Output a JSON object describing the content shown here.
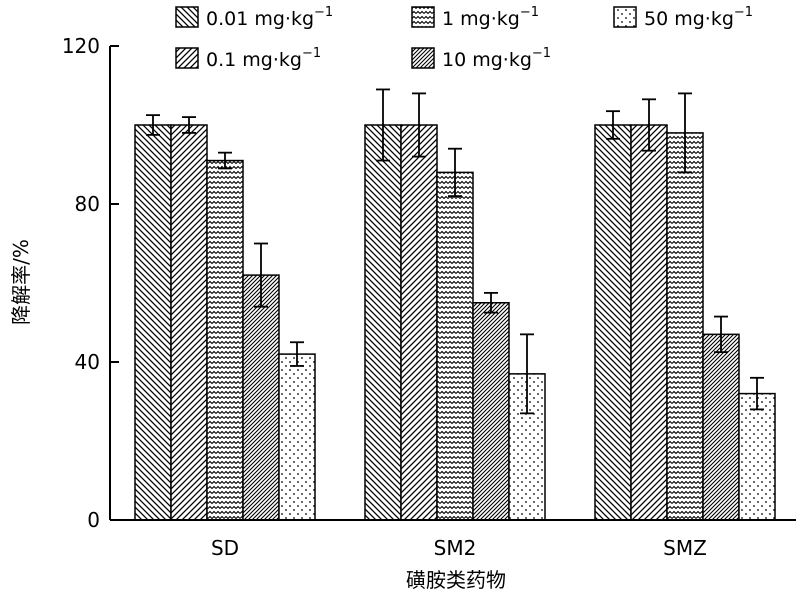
{
  "chart_data": {
    "type": "bar",
    "title": "",
    "xlabel": "磺胺类药物",
    "ylabel": "降解率/%",
    "ylim": [
      0,
      120
    ],
    "yticks": [
      "0",
      "40",
      "80",
      "120"
    ],
    "categories": [
      "SD",
      "SM2",
      "SMZ"
    ],
    "grid": false,
    "legend_position": "top",
    "series": [
      {
        "name": "0.01 mg·kg",
        "name_sup": "−1",
        "pattern": "diag-back",
        "values": [
          100,
          100,
          100
        ],
        "errors": [
          2.5,
          9,
          3.5
        ]
      },
      {
        "name": "0.1 mg·kg",
        "name_sup": "−1",
        "pattern": "diag-fwd",
        "values": [
          100,
          100,
          100
        ],
        "errors": [
          2,
          8,
          6.5
        ]
      },
      {
        "name": "1 mg·kg",
        "name_sup": "−1",
        "pattern": "wave",
        "values": [
          91,
          88,
          98
        ],
        "errors": [
          2,
          6,
          10
        ]
      },
      {
        "name": "10 mg·kg",
        "name_sup": "−1",
        "pattern": "diag-dense",
        "values": [
          62,
          55,
          47
        ],
        "errors": [
          8,
          2.5,
          4.5
        ]
      },
      {
        "name": "50 mg·kg",
        "name_sup": "−1",
        "pattern": "dots",
        "values": [
          42,
          37,
          32
        ],
        "errors": [
          3,
          10,
          4
        ]
      }
    ]
  }
}
